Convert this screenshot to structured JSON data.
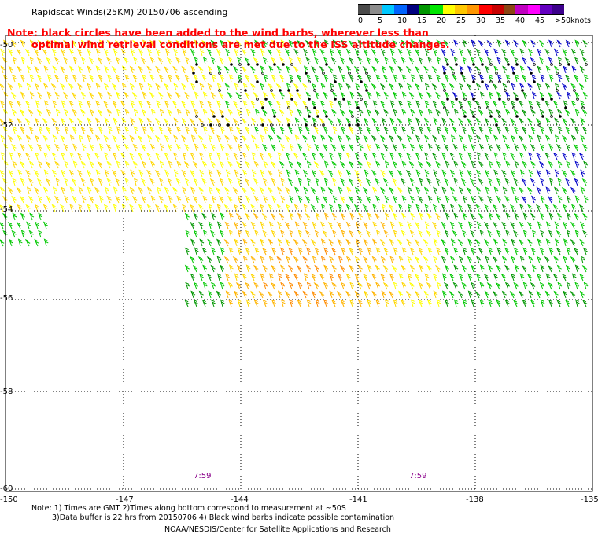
{
  "header": {
    "title": "Rapidscat Winds(25KM) 20150706 ascending",
    "note_line1": "Note: black circles have been added to the wind barbs, wherever less than",
    "note_line2": "optimal wind retrieval conditions are met due to the ISS altitude changes."
  },
  "legend": {
    "units": "knots",
    "labels": [
      "0",
      "5",
      "10",
      "15",
      "20",
      "25",
      "30",
      "35",
      "40",
      "45",
      ">50"
    ],
    "colors": [
      "#4a4a4a",
      "#8c8c8c",
      "#00c8ff",
      "#0064ff",
      "#00007f",
      "#009600",
      "#00e600",
      "#ffff00",
      "#ffc800",
      "#ff9600",
      "#ff0000",
      "#c80000",
      "#8b4513",
      "#c000c0",
      "#ff00ff",
      "#6400c0",
      "#3c008c"
    ]
  },
  "map": {
    "latitudes": [
      "-50",
      "-52",
      "-54",
      "-56",
      "-58",
      "-60"
    ],
    "longitudes": [
      "-150",
      "-147",
      "-144",
      "-141",
      "-138",
      "-135"
    ],
    "time_labels": [
      "7:59",
      "7:59"
    ]
  },
  "footer": {
    "line1": "Note: 1) Times are GMT 2)Times along bottom correspond to measurement at ~50S",
    "line2": "3)Data buffer is 22 hrs from 20150706 4) Black wind barbs indicate possible contamination",
    "credit": "NOAA/NESDIS/Center for Satellite Applications and Research"
  },
  "colors": {
    "grid": "#000000",
    "wind_colors": [
      "#ffff00",
      "#ffd700",
      "#ffb400",
      "#ff8c00",
      "#00c800",
      "#009600",
      "#0000c8"
    ]
  }
}
